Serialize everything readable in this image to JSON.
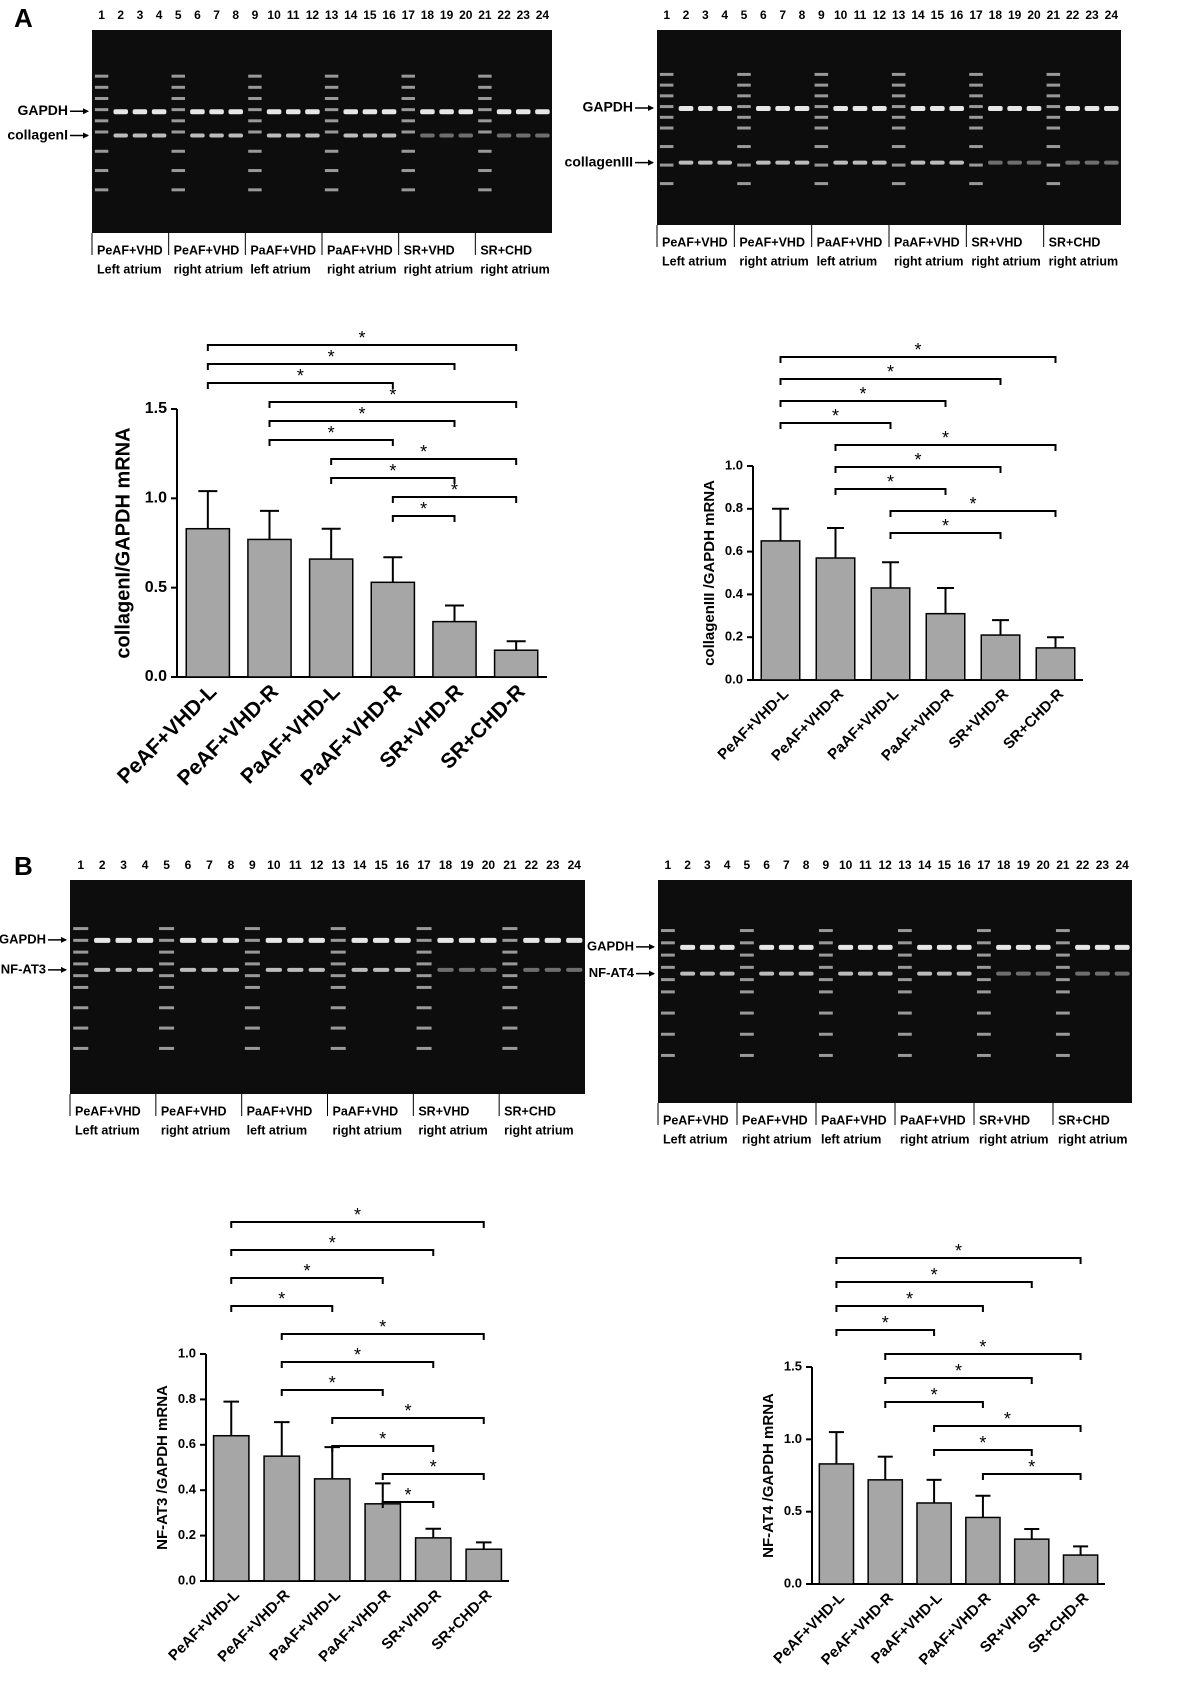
{
  "panel_labels": [
    "A",
    "B"
  ],
  "gels": [
    {
      "lanes": [
        "1",
        "2",
        "3",
        "4",
        "5",
        "6",
        "7",
        "8",
        "9",
        "10",
        "11",
        "12",
        "13",
        "14",
        "15",
        "16",
        "17",
        "18",
        "19",
        "20",
        "21",
        "22",
        "23",
        "24"
      ],
      "bands": [
        "GAPDH",
        "collagenI"
      ],
      "groups": [
        [
          "PeAF+VHD",
          "Left atrium"
        ],
        [
          "PeAF+VHD",
          "right atrium"
        ],
        [
          "PaAF+VHD",
          "left atrium"
        ],
        [
          "PaAF+VHD",
          "right atrium"
        ],
        [
          "SR+VHD",
          "right atrium"
        ],
        [
          "SR+CHD",
          "right atrium"
        ]
      ]
    },
    {
      "lanes": [
        "1",
        "2",
        "3",
        "4",
        "5",
        "6",
        "7",
        "8",
        "9",
        "10",
        "11",
        "12",
        "13",
        "14",
        "15",
        "16",
        "17",
        "18",
        "19",
        "20",
        "21",
        "22",
        "23",
        "24"
      ],
      "bands": [
        "GAPDH",
        "collagenIII"
      ],
      "groups": [
        [
          "PeAF+VHD",
          "Left atrium"
        ],
        [
          "PeAF+VHD",
          "right atrium"
        ],
        [
          "PaAF+VHD",
          "left atrium"
        ],
        [
          "PaAF+VHD",
          "right atrium"
        ],
        [
          "SR+VHD",
          "right atrium"
        ],
        [
          "SR+CHD",
          "right atrium"
        ]
      ]
    },
    {
      "lanes": [
        "1",
        "2",
        "3",
        "4",
        "5",
        "6",
        "7",
        "8",
        "9",
        "10",
        "11",
        "12",
        "13",
        "14",
        "15",
        "16",
        "17",
        "18",
        "19",
        "20",
        "21",
        "22",
        "23",
        "24"
      ],
      "bands": [
        "GAPDH",
        "NF-AT3"
      ],
      "groups": [
        [
          "PeAF+VHD",
          "Left atrium"
        ],
        [
          "PeAF+VHD",
          "right atrium"
        ],
        [
          "PaAF+VHD",
          "left atrium"
        ],
        [
          "PaAF+VHD",
          "right atrium"
        ],
        [
          "SR+VHD",
          "right atrium"
        ],
        [
          "SR+CHD",
          "right atrium"
        ]
      ]
    },
    {
      "lanes": [
        "1",
        "2",
        "3",
        "4",
        "5",
        "6",
        "7",
        "8",
        "9",
        "10",
        "11",
        "12",
        "13",
        "14",
        "15",
        "16",
        "17",
        "18",
        "19",
        "20",
        "21",
        "22",
        "23",
        "24"
      ],
      "bands": [
        "GAPDH",
        "NF-AT4"
      ],
      "groups": [
        [
          "PeAF+VHD",
          "Left atrium"
        ],
        [
          "PeAF+VHD",
          "right atrium"
        ],
        [
          "PaAF+VHD",
          "left atrium"
        ],
        [
          "PaAF+VHD",
          "right atrium"
        ],
        [
          "SR+VHD",
          "right atrium"
        ],
        [
          "SR+CHD",
          "right atrium"
        ]
      ]
    }
  ],
  "chart_data": [
    {
      "type": "bar",
      "ylabel": "collagenI/GAPDH mRNA",
      "color": "#a6a6a6",
      "categories": [
        "PeAF+VHD-L",
        "PeAF+VHD-R",
        "PaAF+VHD-L",
        "PaAF+VHD-R",
        "SR+VHD-R",
        "SR+CHD-R"
      ],
      "values": [
        0.83,
        0.77,
        0.66,
        0.53,
        0.31,
        0.15
      ],
      "errors": [
        0.21,
        0.16,
        0.17,
        0.14,
        0.09,
        0.05
      ],
      "ylim": [
        0,
        1.5
      ],
      "yticks": [
        {
          "value": 0,
          "label": "0.0"
        },
        0.5,
        {
          "value": 1,
          "label": "1.0"
        },
        1.5
      ],
      "comparisons": [
        {
          "pair": [
            0,
            5
          ],
          "label": "*"
        },
        {
          "pair": [
            0,
            4
          ],
          "label": "*"
        },
        {
          "pair": [
            0,
            3
          ],
          "label": "*"
        },
        {
          "pair": [
            1,
            5
          ],
          "label": "*"
        },
        {
          "pair": [
            1,
            4
          ],
          "label": "*"
        },
        {
          "pair": [
            1,
            3
          ],
          "label": "*"
        },
        {
          "pair": [
            2,
            5
          ],
          "label": "*"
        },
        {
          "pair": [
            2,
            4
          ],
          "label": "*"
        },
        {
          "pair": [
            3,
            5
          ],
          "label": "*"
        },
        {
          "pair": [
            3,
            4
          ],
          "label": "*"
        }
      ]
    },
    {
      "type": "bar",
      "ylabel": "collagenIII /GAPDH mRNA",
      "color": "#a6a6a6",
      "categories": [
        "PeAF+VHD-L",
        "PeAF+VHD-R",
        "PaAF+VHD-L",
        "PaAF+VHD-R",
        "SR+VHD-R",
        "SR+CHD-R"
      ],
      "values": [
        0.65,
        0.57,
        0.43,
        0.31,
        0.21,
        0.15
      ],
      "errors": [
        0.15,
        0.14,
        0.12,
        0.12,
        0.07,
        0.05
      ],
      "ylim": [
        0,
        1
      ],
      "yticks": [
        {
          "value": 0,
          "label": "0.0"
        },
        0.2,
        0.4,
        0.6,
        0.8,
        {
          "value": 1,
          "label": "1.0"
        }
      ],
      "comparisons": [
        {
          "pair": [
            0,
            5
          ],
          "label": "*"
        },
        {
          "pair": [
            0,
            4
          ],
          "label": "*"
        },
        {
          "pair": [
            0,
            3
          ],
          "label": "*"
        },
        {
          "pair": [
            0,
            2
          ],
          "label": "*"
        },
        {
          "pair": [
            1,
            5
          ],
          "label": "*"
        },
        {
          "pair": [
            1,
            4
          ],
          "label": "*"
        },
        {
          "pair": [
            1,
            3
          ],
          "label": "*"
        },
        {
          "pair": [
            2,
            5
          ],
          "label": "*"
        },
        {
          "pair": [
            2,
            4
          ],
          "label": "*"
        }
      ]
    },
    {
      "type": "bar",
      "ylabel": "NF-AT3 /GAPDH mRNA",
      "color": "#a6a6a6",
      "categories": [
        "PeAF+VHD-L",
        "PeAF+VHD-R",
        "PaAF+VHD-L",
        "PaAF+VHD-R",
        "SR+VHD-R",
        "SR+CHD-R"
      ],
      "values": [
        0.64,
        0.55,
        0.45,
        0.34,
        0.19,
        0.14
      ],
      "errors": [
        0.15,
        0.15,
        0.14,
        0.09,
        0.04,
        0.03
      ],
      "ylim": [
        0,
        1
      ],
      "yticks": [
        {
          "value": 0,
          "label": "0.0"
        },
        0.2,
        0.4,
        0.6,
        0.8,
        {
          "value": 1,
          "label": "1.0"
        }
      ],
      "comparisons": [
        {
          "pair": [
            0,
            5
          ],
          "label": "*"
        },
        {
          "pair": [
            0,
            4
          ],
          "label": "*"
        },
        {
          "pair": [
            0,
            3
          ],
          "label": "*"
        },
        {
          "pair": [
            0,
            2
          ],
          "label": "*"
        },
        {
          "pair": [
            1,
            5
          ],
          "label": "*"
        },
        {
          "pair": [
            1,
            4
          ],
          "label": "*"
        },
        {
          "pair": [
            1,
            3
          ],
          "label": "*"
        },
        {
          "pair": [
            2,
            5
          ],
          "label": "*"
        },
        {
          "pair": [
            2,
            4
          ],
          "label": "*"
        },
        {
          "pair": [
            3,
            5
          ],
          "label": "*"
        },
        {
          "pair": [
            3,
            4
          ],
          "label": "*"
        }
      ]
    },
    {
      "type": "bar",
      "ylabel": "NF-AT4 /GAPDH mRNA",
      "color": "#a6a6a6",
      "categories": [
        "PeAF+VHD-L",
        "PeAF+VHD-R",
        "PaAF+VHD-L",
        "PaAF+VHD-R",
        "SR+VHD-R",
        "SR+CHD-R"
      ],
      "values": [
        0.83,
        0.72,
        0.56,
        0.46,
        0.31,
        0.2
      ],
      "errors": [
        0.22,
        0.16,
        0.16,
        0.15,
        0.07,
        0.06
      ],
      "ylim": [
        0,
        1.5
      ],
      "yticks": [
        {
          "value": 0,
          "label": "0.0"
        },
        0.5,
        {
          "value": 1,
          "label": "1.0"
        },
        1.5
      ],
      "comparisons": [
        {
          "pair": [
            0,
            5
          ],
          "label": "*"
        },
        {
          "pair": [
            0,
            4
          ],
          "label": "*"
        },
        {
          "pair": [
            0,
            3
          ],
          "label": "*"
        },
        {
          "pair": [
            0,
            2
          ],
          "label": "*"
        },
        {
          "pair": [
            1,
            5
          ],
          "label": "*"
        },
        {
          "pair": [
            1,
            4
          ],
          "label": "*"
        },
        {
          "pair": [
            1,
            3
          ],
          "label": "*"
        },
        {
          "pair": [
            2,
            5
          ],
          "label": "*"
        },
        {
          "pair": [
            2,
            4
          ],
          "label": "*"
        },
        {
          "pair": [
            3,
            5
          ],
          "label": "*"
        }
      ]
    }
  ]
}
